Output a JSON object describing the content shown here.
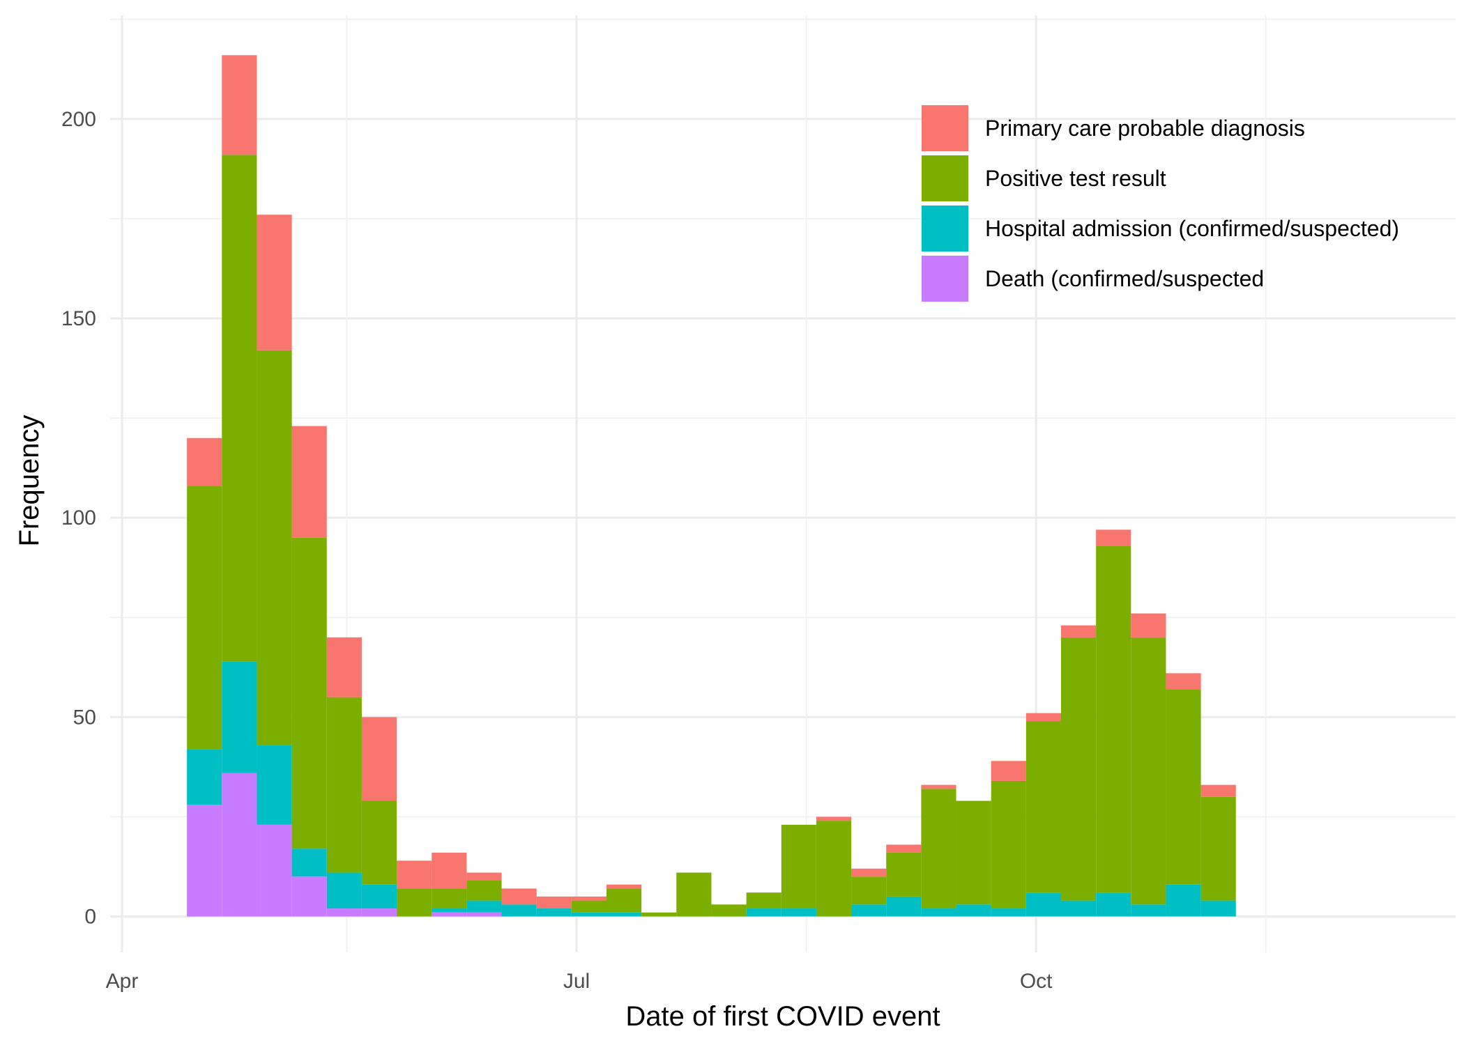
{
  "chart_data": {
    "type": "bar",
    "stacked": true,
    "title": "",
    "xlabel": "Date of first COVID event",
    "ylabel": "Frequency",
    "x_ticks": [
      "Apr",
      "Jul",
      "Oct"
    ],
    "y_ticks": [
      0,
      50,
      100,
      150,
      200
    ],
    "ylim": [
      -9,
      226
    ],
    "grid": true,
    "legend_position": "top-right",
    "bin_width_days": 7,
    "bin_start_dates": [
      "2020-04-14",
      "2020-04-21",
      "2020-04-28",
      "2020-05-05",
      "2020-05-12",
      "2020-05-19",
      "2020-05-26",
      "2020-06-02",
      "2020-06-09",
      "2020-06-16",
      "2020-06-23",
      "2020-06-30",
      "2020-07-07",
      "2020-07-14",
      "2020-07-21",
      "2020-07-28",
      "2020-08-04",
      "2020-08-11",
      "2020-08-18",
      "2020-08-25",
      "2020-09-01",
      "2020-09-08",
      "2020-09-15",
      "2020-09-22",
      "2020-09-29",
      "2020-10-06",
      "2020-10-13",
      "2020-10-20",
      "2020-10-27",
      "2020-11-03",
      "2020-11-10",
      "2020-11-17"
    ],
    "series": [
      {
        "name": "Death (confirmed/suspected",
        "color": "#C77CFF",
        "values": [
          28,
          36,
          23,
          10,
          2,
          2,
          0,
          1,
          1,
          0,
          0,
          0,
          0,
          0,
          0,
          0,
          0,
          0,
          0,
          0,
          0,
          0,
          0,
          0,
          0,
          0,
          0,
          0,
          0,
          0,
          0,
          0
        ]
      },
      {
        "name": "Hospital admission (confirmed/suspected)",
        "color": "#00BFC4",
        "values": [
          14,
          28,
          20,
          7,
          9,
          6,
          0,
          1,
          3,
          3,
          2,
          1,
          1,
          0,
          0,
          0,
          2,
          2,
          0,
          3,
          5,
          2,
          3,
          2,
          6,
          4,
          6,
          3,
          8,
          4,
          0,
          0
        ]
      },
      {
        "name": "Positive test result",
        "color": "#7CAE00",
        "values": [
          66,
          127,
          99,
          78,
          44,
          21,
          7,
          5,
          5,
          0,
          0,
          3,
          6,
          1,
          11,
          3,
          4,
          21,
          24,
          7,
          11,
          30,
          26,
          32,
          43,
          66,
          87,
          67,
          49,
          26,
          0,
          0
        ]
      },
      {
        "name": "Primary care probable diagnosis",
        "color": "#F8766D",
        "values": [
          12,
          25,
          34,
          28,
          15,
          21,
          7,
          9,
          2,
          4,
          3,
          1,
          1,
          0,
          0,
          0,
          0,
          0,
          1,
          2,
          2,
          1,
          0,
          5,
          2,
          3,
          4,
          6,
          4,
          3,
          0,
          0
        ]
      }
    ]
  },
  "legend": {
    "items": [
      {
        "label": "Primary care probable diagnosis",
        "color": "#F8766D"
      },
      {
        "label": "Positive test result",
        "color": "#7CAE00"
      },
      {
        "label": "Hospital admission (confirmed/suspected)",
        "color": "#00BFC4"
      },
      {
        "label": "Death (confirmed/suspected",
        "color": "#C77CFF"
      }
    ]
  }
}
